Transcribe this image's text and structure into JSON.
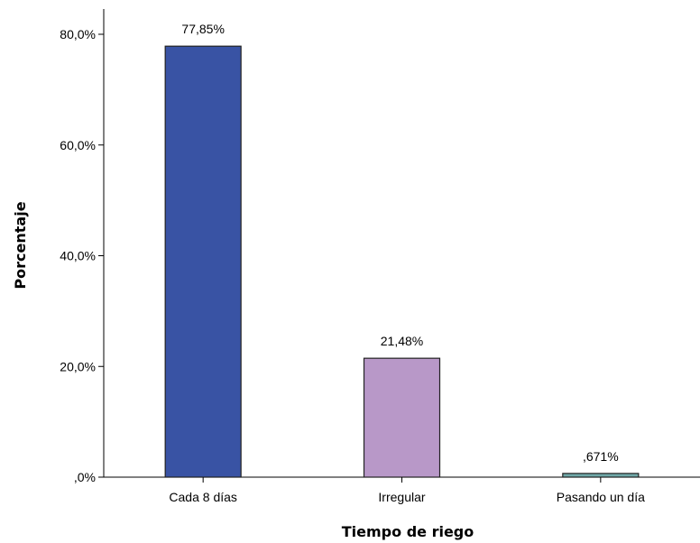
{
  "chart_data": {
    "type": "bar",
    "title": "",
    "xlabel": "Tiempo de riego",
    "ylabel": "Porcentaje",
    "categories": [
      "Cada 8 días",
      "Irregular",
      "Pasando un día"
    ],
    "values": [
      77.85,
      21.48,
      0.671
    ],
    "data_labels": [
      "77,85%",
      "21,48%",
      ",671%"
    ],
    "bar_colors": [
      "#3953a4",
      "#b898c8",
      "#6fa8a8"
    ],
    "bar_stroke": "#222222",
    "ylim": [
      0,
      80
    ],
    "yticks": [
      {
        "value": 0,
        "label": ",0%"
      },
      {
        "value": 20,
        "label": "20,0%"
      },
      {
        "value": 40,
        "label": "40,0%"
      },
      {
        "value": 60,
        "label": "60,0%"
      },
      {
        "value": 80,
        "label": "80,0%"
      }
    ],
    "grid": false,
    "legend": "none"
  }
}
